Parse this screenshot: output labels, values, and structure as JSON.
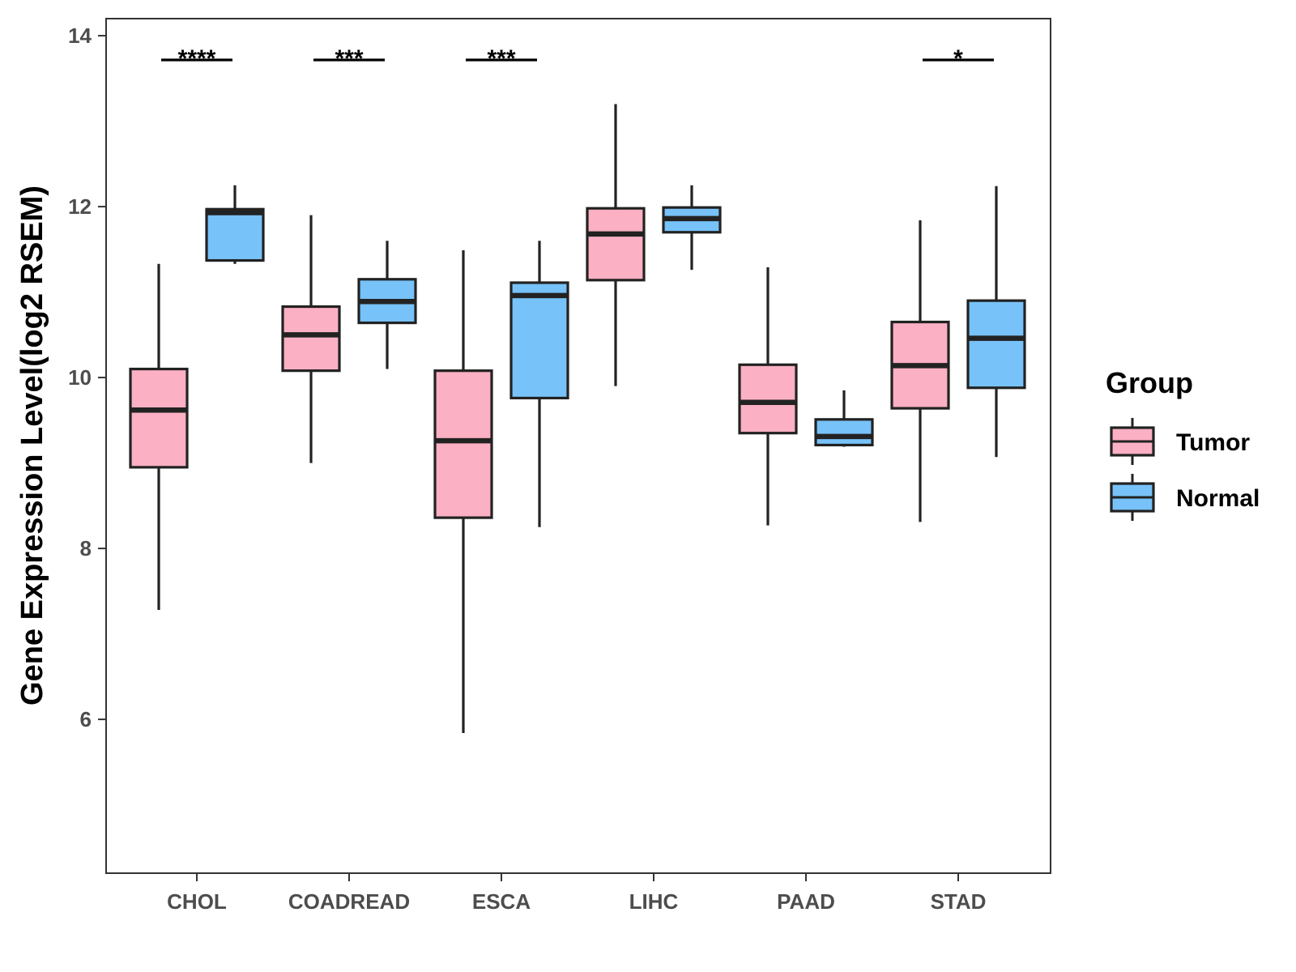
{
  "chart_data": {
    "type": "boxplot",
    "title": "",
    "xlabel": "",
    "ylabel": "Gene Expression Level(log2 RSEM)",
    "ylim": [
      4.2,
      14.2
    ],
    "yticks": [
      6,
      8,
      10,
      12,
      14
    ],
    "categories": [
      "CHOL",
      "COADREAD",
      "ESCA",
      "LIHC",
      "PAAD",
      "STAD"
    ],
    "grid": false,
    "legend": {
      "title": "Group",
      "position": "right",
      "entries": [
        "Tumor",
        "Normal"
      ]
    },
    "colors": {
      "Tumor": "#FBB0C3",
      "Normal": "#77C2F8",
      "outline": "#222222"
    },
    "series": [
      {
        "name": "Tumor",
        "boxes": [
          {
            "whisker_low": 7.28,
            "q1": 8.95,
            "median": 9.62,
            "q3": 10.1,
            "whisker_high": 11.33
          },
          {
            "whisker_low": 9.0,
            "q1": 10.08,
            "median": 10.5,
            "q3": 10.83,
            "whisker_high": 11.9
          },
          {
            "whisker_low": 5.84,
            "q1": 8.36,
            "median": 9.26,
            "q3": 10.08,
            "whisker_high": 11.49
          },
          {
            "whisker_low": 9.9,
            "q1": 11.14,
            "median": 11.68,
            "q3": 11.98,
            "whisker_high": 13.2
          },
          {
            "whisker_low": 8.27,
            "q1": 9.35,
            "median": 9.71,
            "q3": 10.15,
            "whisker_high": 11.29
          },
          {
            "whisker_low": 8.31,
            "q1": 9.64,
            "median": 10.14,
            "q3": 10.65,
            "whisker_high": 11.84
          }
        ]
      },
      {
        "name": "Normal",
        "boxes": [
          {
            "whisker_low": 11.33,
            "q1": 11.37,
            "median": 11.93,
            "q3": 11.97,
            "whisker_high": 12.25
          },
          {
            "whisker_low": 10.1,
            "q1": 10.64,
            "median": 10.89,
            "q3": 11.15,
            "whisker_high": 11.6
          },
          {
            "whisker_low": 8.25,
            "q1": 9.76,
            "median": 10.96,
            "q3": 11.11,
            "whisker_high": 11.6
          },
          {
            "whisker_low": 11.26,
            "q1": 11.7,
            "median": 11.86,
            "q3": 11.99,
            "whisker_high": 12.25
          },
          {
            "whisker_low": 9.19,
            "q1": 9.21,
            "median": 9.31,
            "q3": 9.51,
            "whisker_high": 9.85
          },
          {
            "whisker_low": 9.07,
            "q1": 9.88,
            "median": 10.46,
            "q3": 10.9,
            "whisker_high": 12.24
          }
        ]
      }
    ],
    "annotations": [
      {
        "category": "CHOL",
        "label": "****"
      },
      {
        "category": "COADREAD",
        "label": "***"
      },
      {
        "category": "ESCA",
        "label": "***"
      },
      {
        "category": "STAD",
        "label": "*"
      }
    ]
  }
}
